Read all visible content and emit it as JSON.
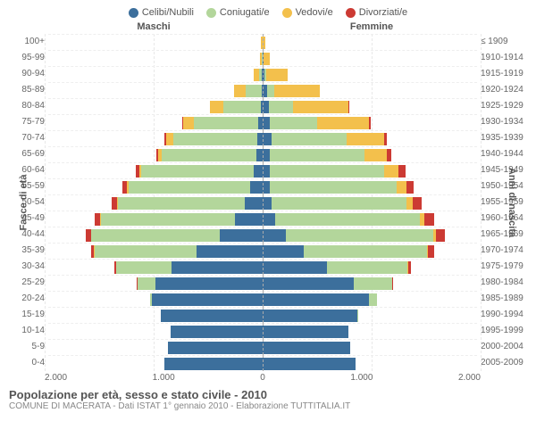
{
  "type": "population-pyramid",
  "legend": [
    {
      "label": "Celibi/Nubili",
      "color": "#3c6f9c"
    },
    {
      "label": "Coniugati/e",
      "color": "#b3d69b"
    },
    {
      "label": "Vedovi/e",
      "color": "#f3c04c"
    },
    {
      "label": "Divorziati/e",
      "color": "#cc3a33"
    }
  ],
  "headers": {
    "male": "Maschi",
    "female": "Femmine"
  },
  "y_left_title": "Fasce di età",
  "y_right_title": "Anni di nascita",
  "x_ticks": [
    "2.000",
    "1.000",
    "0",
    "1.000",
    "2.000"
  ],
  "xmax": 2000,
  "colors": {
    "celibi": "#3c6f9c",
    "coniugati": "#b3d69b",
    "vedovi": "#f3c04c",
    "divorziati": "#cc3a33",
    "grid": "#e8e8e8",
    "centerline": "#aaaaaa",
    "background": "#ffffff"
  },
  "rows": [
    {
      "age": "100+",
      "year": "≤ 1909",
      "m": {
        "c": 0,
        "k": 0,
        "v": 15,
        "d": 0
      },
      "f": {
        "c": 0,
        "k": 0,
        "v": 25,
        "d": 0
      }
    },
    {
      "age": "95-99",
      "year": "1910-1914",
      "m": {
        "c": 2,
        "k": 5,
        "v": 20,
        "d": 0
      },
      "f": {
        "c": 5,
        "k": 2,
        "v": 60,
        "d": 0
      }
    },
    {
      "age": "90-94",
      "year": "1915-1919",
      "m": {
        "c": 5,
        "k": 30,
        "v": 50,
        "d": 0
      },
      "f": {
        "c": 20,
        "k": 15,
        "v": 200,
        "d": 0
      }
    },
    {
      "age": "85-89",
      "year": "1920-1924",
      "m": {
        "c": 10,
        "k": 150,
        "v": 110,
        "d": 0
      },
      "f": {
        "c": 40,
        "k": 70,
        "v": 420,
        "d": 0
      }
    },
    {
      "age": "80-84",
      "year": "1925-1929",
      "m": {
        "c": 20,
        "k": 350,
        "v": 120,
        "d": 0
      },
      "f": {
        "c": 60,
        "k": 220,
        "v": 520,
        "d": 5
      }
    },
    {
      "age": "75-79",
      "year": "1930-1934",
      "m": {
        "c": 40,
        "k": 600,
        "v": 100,
        "d": 10
      },
      "f": {
        "c": 70,
        "k": 440,
        "v": 480,
        "d": 20
      }
    },
    {
      "age": "70-74",
      "year": "1935-1939",
      "m": {
        "c": 50,
        "k": 780,
        "v": 70,
        "d": 15
      },
      "f": {
        "c": 80,
        "k": 700,
        "v": 350,
        "d": 30
      }
    },
    {
      "age": "65-69",
      "year": "1940-1944",
      "m": {
        "c": 60,
        "k": 880,
        "v": 35,
        "d": 20
      },
      "f": {
        "c": 70,
        "k": 880,
        "v": 210,
        "d": 40
      }
    },
    {
      "age": "60-64",
      "year": "1945-1949",
      "m": {
        "c": 80,
        "k": 1050,
        "v": 20,
        "d": 30
      },
      "f": {
        "c": 70,
        "k": 1060,
        "v": 140,
        "d": 60
      }
    },
    {
      "age": "55-59",
      "year": "1950-1954",
      "m": {
        "c": 120,
        "k": 1130,
        "v": 15,
        "d": 40
      },
      "f": {
        "c": 70,
        "k": 1180,
        "v": 90,
        "d": 70
      }
    },
    {
      "age": "50-54",
      "year": "1955-1959",
      "m": {
        "c": 170,
        "k": 1180,
        "v": 10,
        "d": 50
      },
      "f": {
        "c": 80,
        "k": 1260,
        "v": 60,
        "d": 80
      }
    },
    {
      "age": "45-49",
      "year": "1960-1964",
      "m": {
        "c": 260,
        "k": 1250,
        "v": 5,
        "d": 55
      },
      "f": {
        "c": 120,
        "k": 1350,
        "v": 40,
        "d": 90
      }
    },
    {
      "age": "40-44",
      "year": "1965-1969",
      "m": {
        "c": 400,
        "k": 1200,
        "v": 3,
        "d": 45
      },
      "f": {
        "c": 220,
        "k": 1370,
        "v": 25,
        "d": 85
      }
    },
    {
      "age": "35-39",
      "year": "1970-1974",
      "m": {
        "c": 620,
        "k": 950,
        "v": 2,
        "d": 30
      },
      "f": {
        "c": 380,
        "k": 1150,
        "v": 15,
        "d": 55
      }
    },
    {
      "age": "30-34",
      "year": "1975-1979",
      "m": {
        "c": 850,
        "k": 520,
        "v": 0,
        "d": 15
      },
      "f": {
        "c": 600,
        "k": 750,
        "v": 5,
        "d": 25
      }
    },
    {
      "age": "25-29",
      "year": "1980-1984",
      "m": {
        "c": 1000,
        "k": 170,
        "v": 0,
        "d": 3
      },
      "f": {
        "c": 850,
        "k": 360,
        "v": 0,
        "d": 8
      }
    },
    {
      "age": "20-24",
      "year": "1985-1989",
      "m": {
        "c": 1030,
        "k": 20,
        "v": 0,
        "d": 0
      },
      "f": {
        "c": 990,
        "k": 80,
        "v": 0,
        "d": 0
      }
    },
    {
      "age": "15-19",
      "year": "1990-1994",
      "m": {
        "c": 950,
        "k": 0,
        "v": 0,
        "d": 0
      },
      "f": {
        "c": 880,
        "k": 2,
        "v": 0,
        "d": 0
      }
    },
    {
      "age": "10-14",
      "year": "1995-1999",
      "m": {
        "c": 860,
        "k": 0,
        "v": 0,
        "d": 0
      },
      "f": {
        "c": 800,
        "k": 0,
        "v": 0,
        "d": 0
      }
    },
    {
      "age": "5-9",
      "year": "2000-2004",
      "m": {
        "c": 880,
        "k": 0,
        "v": 0,
        "d": 0
      },
      "f": {
        "c": 820,
        "k": 0,
        "v": 0,
        "d": 0
      }
    },
    {
      "age": "0-4",
      "year": "2005-2009",
      "m": {
        "c": 920,
        "k": 0,
        "v": 0,
        "d": 0
      },
      "f": {
        "c": 870,
        "k": 0,
        "v": 0,
        "d": 0
      }
    }
  ],
  "footer": {
    "title": "Popolazione per età, sesso e stato civile - 2010",
    "sub": "COMUNE DI MACERATA - Dati ISTAT 1° gennaio 2010 - Elaborazione TUTTITALIA.IT"
  }
}
